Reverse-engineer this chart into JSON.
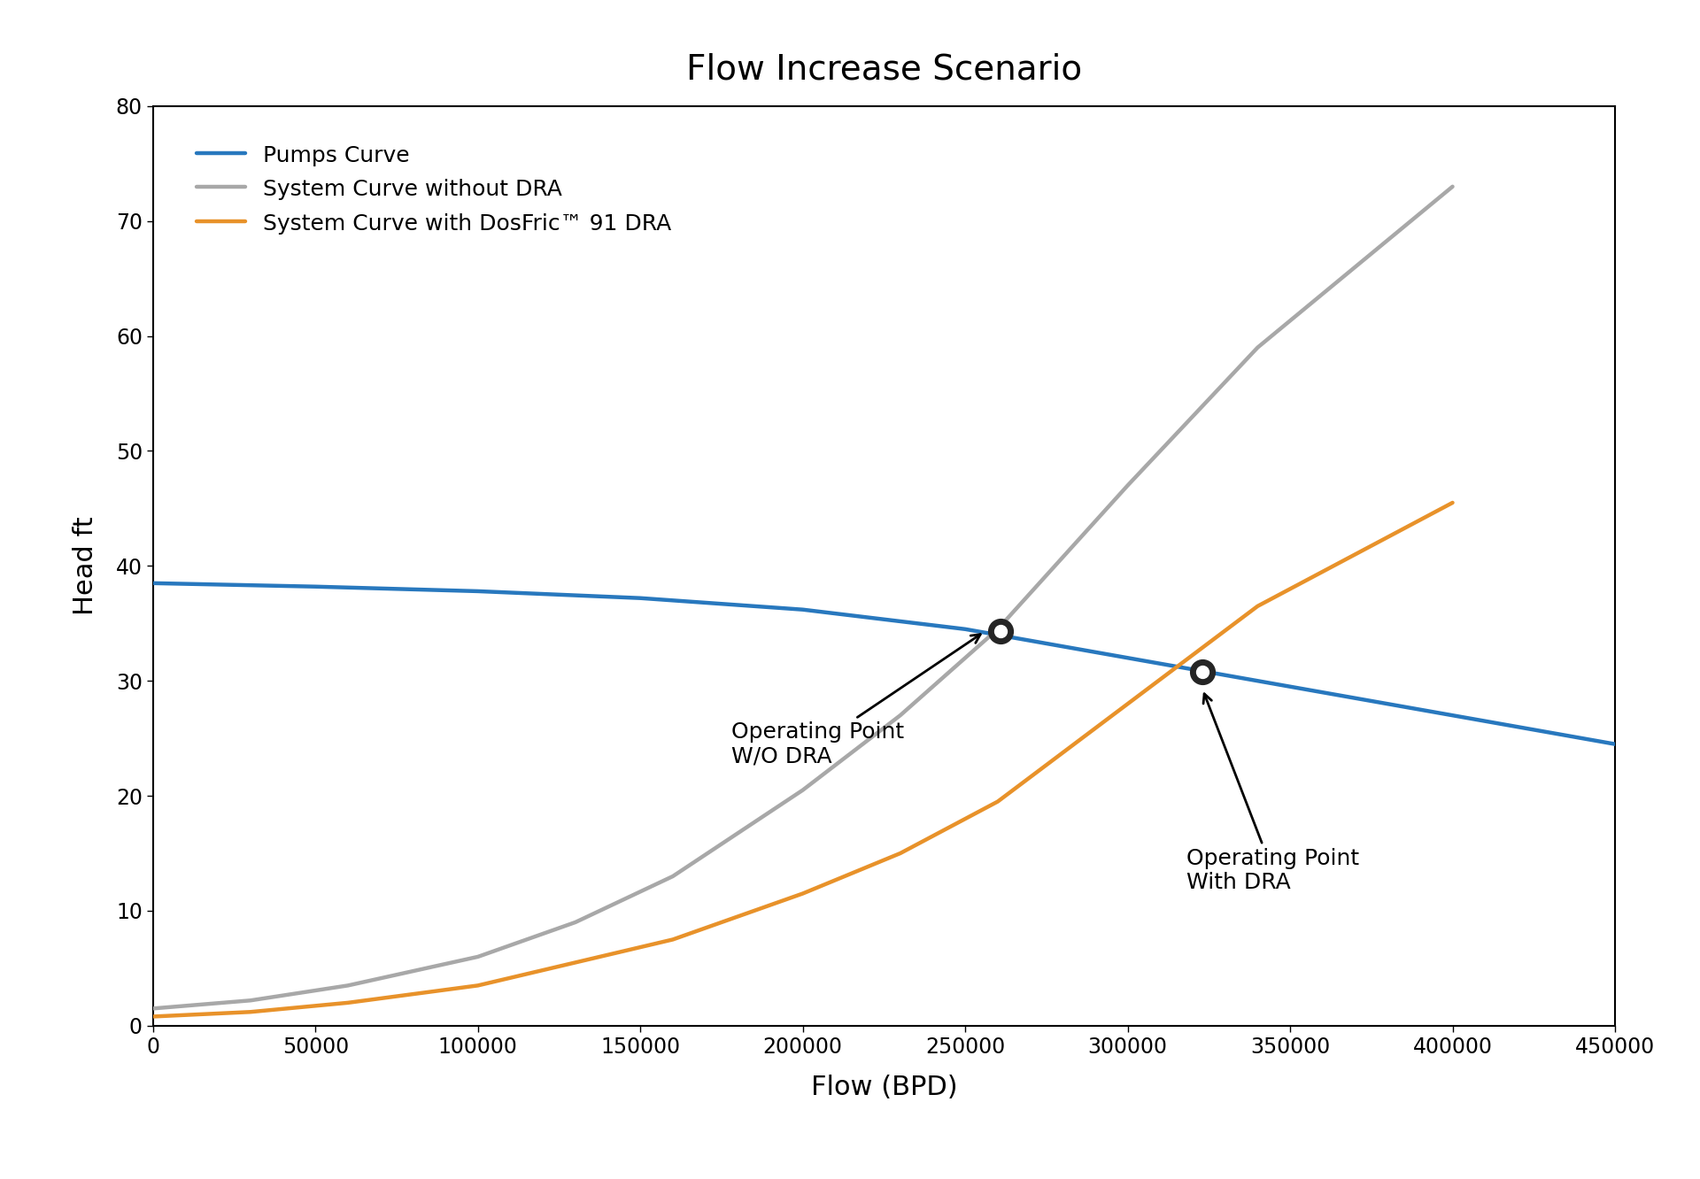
{
  "title": "Flow Increase Scenario",
  "xlabel": "Flow (BPD)",
  "ylabel": "Head ft",
  "xlim": [
    0,
    450000
  ],
  "ylim": [
    0,
    80
  ],
  "xticks": [
    0,
    50000,
    100000,
    150000,
    200000,
    250000,
    300000,
    350000,
    400000,
    450000
  ],
  "yticks": [
    0,
    10,
    20,
    30,
    40,
    50,
    60,
    70,
    80
  ],
  "pumps_curve_color": "#2878BE",
  "system_no_dra_color": "#A8A8A8",
  "system_with_dra_color": "#E8922A",
  "pumps_curve_x": [
    0,
    50000,
    100000,
    150000,
    200000,
    250000,
    300000,
    350000,
    400000,
    450000
  ],
  "pumps_curve_y": [
    38.5,
    38.2,
    37.8,
    37.2,
    36.2,
    34.5,
    32.0,
    29.5,
    27.0,
    24.5
  ],
  "system_no_dra_x": [
    0,
    30000,
    60000,
    100000,
    130000,
    160000,
    200000,
    230000,
    260000,
    300000,
    340000,
    370000,
    400000
  ],
  "system_no_dra_y": [
    1.5,
    2.2,
    3.5,
    6.0,
    9.0,
    13.0,
    20.5,
    27.0,
    34.5,
    47.0,
    59.0,
    66.0,
    73.0
  ],
  "system_with_dra_x": [
    0,
    30000,
    60000,
    100000,
    130000,
    160000,
    200000,
    230000,
    260000,
    300000,
    340000,
    370000,
    400000
  ],
  "system_with_dra_y": [
    0.8,
    1.2,
    2.0,
    3.5,
    5.5,
    7.5,
    11.5,
    15.0,
    19.5,
    28.0,
    36.5,
    41.0,
    45.5
  ],
  "op_point_no_dra_x": 261000,
  "op_point_no_dra_y": 34.3,
  "op_point_with_dra_x": 323000,
  "op_point_with_dra_y": 30.8,
  "legend_labels": [
    "Pumps Curve",
    "System Curve without DRA",
    "System Curve with DosFric™ 91 DRA"
  ],
  "background_color": "#FFFFFF",
  "line_width": 3.2,
  "title_fontsize": 28,
  "axis_label_fontsize": 22,
  "tick_fontsize": 17,
  "legend_fontsize": 18,
  "annotation_fontsize": 18,
  "marker_outer_size": 20,
  "marker_inner_size": 10,
  "marker_outer_color": "#252525",
  "marker_inner_color": "#FFFFFF"
}
